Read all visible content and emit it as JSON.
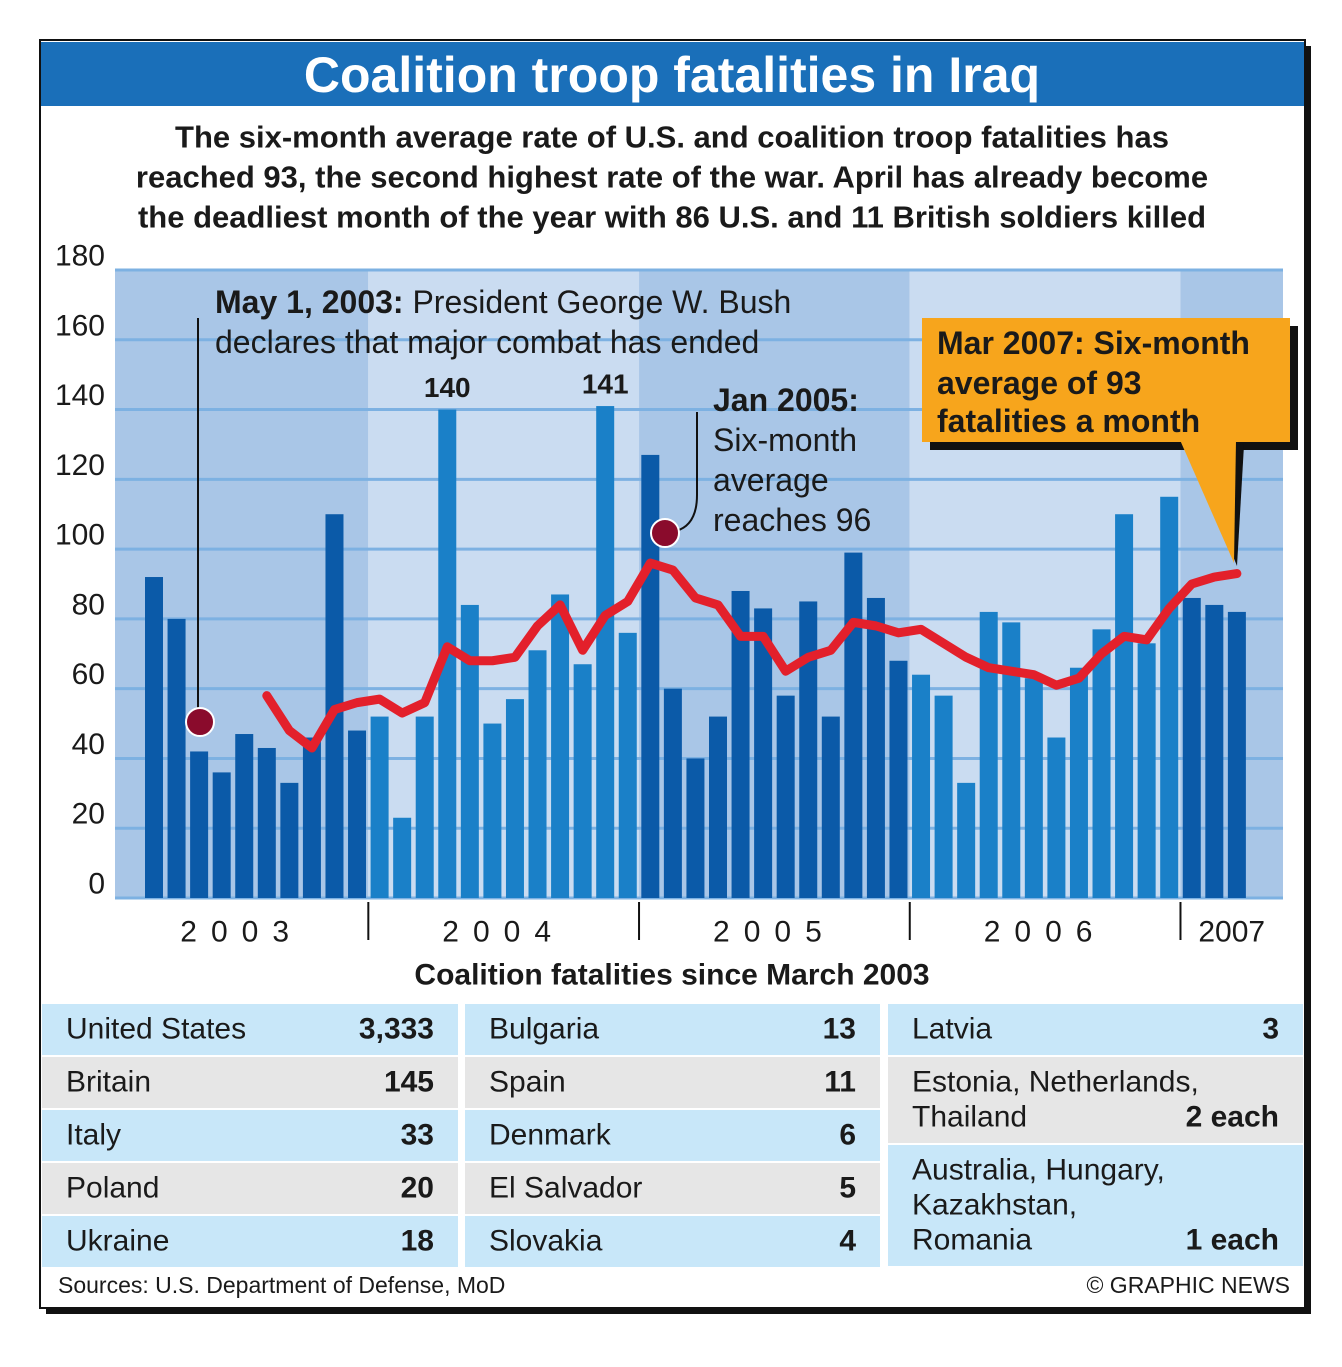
{
  "chart_data": {
    "type": "bar",
    "title": "Coalition troop fatalities in Iraq",
    "subtitle": [
      "The six-month average rate of U.S. and coalition troop fatalities has",
      "reached 93, the second highest rate of the war. April has already become",
      "the deadliest month of the year with 86 U.S. and 11 British soldiers killed"
    ],
    "ylim": [
      0,
      180
    ],
    "yticks": [
      0,
      20,
      40,
      60,
      80,
      100,
      120,
      140,
      160,
      180
    ],
    "grid": true,
    "line_color": "#e3202b",
    "years": [
      {
        "label": "2003",
        "color": "#0b5aa8",
        "band_color": "#a9c6e7",
        "values": [
          92,
          80,
          42,
          36,
          47,
          43,
          33,
          46,
          110,
          48
        ],
        "average": [
          null,
          null,
          null,
          null,
          null,
          58,
          48,
          43,
          54,
          56
        ]
      },
      {
        "label": "2004",
        "color": "#1a80c8",
        "band_color": "#cadcf1",
        "values": [
          52,
          23,
          52,
          140,
          84,
          50,
          57,
          71,
          87,
          67,
          141,
          76
        ],
        "average": [
          57,
          53,
          56,
          72,
          68,
          68,
          69,
          78,
          84,
          71,
          81,
          85
        ]
      },
      {
        "label": "2005",
        "color": "#0b5aa8",
        "band_color": "#a9c6e7",
        "values": [
          127,
          60,
          40,
          52,
          88,
          83,
          58,
          85,
          52,
          99,
          86,
          68
        ],
        "average": [
          96,
          94,
          86,
          84,
          75,
          75,
          65,
          69,
          71,
          79,
          78,
          76
        ]
      },
      {
        "label": "2006",
        "color": "#1a80c8",
        "band_color": "#cadcf1",
        "values": [
          64,
          58,
          33,
          82,
          79,
          63,
          46,
          66,
          77,
          110,
          73,
          115
        ],
        "average": [
          77,
          73,
          69,
          66,
          65,
          64,
          61,
          63,
          70,
          75,
          74,
          83
        ]
      },
      {
        "label": "2007",
        "color": "#0b5aa8",
        "band_color": "#a9c6e7",
        "values": [
          86,
          84,
          82
        ],
        "average": [
          90,
          92,
          93
        ]
      }
    ],
    "annotations": [
      {
        "bold": "May 1, 2003:",
        "lines": [
          "President George W. Bush",
          "declares that major combat has ended"
        ]
      },
      {
        "bold": "Jan 2005:",
        "lines": [
          "Six-month",
          "average",
          "reaches 96"
        ]
      },
      {
        "bold": "Mar 2007: Six-month",
        "lines": [
          "average of 93",
          "fatalities a month"
        ]
      }
    ]
  },
  "table": {
    "title": "Coalition fatalities since March 2003",
    "columns": [
      [
        {
          "name": [
            "United States"
          ],
          "value": "3,333"
        },
        {
          "name": [
            "Britain"
          ],
          "value": "145"
        },
        {
          "name": [
            "Italy"
          ],
          "value": "33"
        },
        {
          "name": [
            "Poland"
          ],
          "value": "20"
        },
        {
          "name": [
            "Ukraine"
          ],
          "value": "18"
        }
      ],
      [
        {
          "name": [
            "Bulgaria"
          ],
          "value": "13"
        },
        {
          "name": [
            "Spain"
          ],
          "value": "11"
        },
        {
          "name": [
            "Denmark"
          ],
          "value": "6"
        },
        {
          "name": [
            "El Salvador"
          ],
          "value": "5"
        },
        {
          "name": [
            "Slovakia"
          ],
          "value": "4"
        }
      ],
      [
        {
          "name": [
            "Latvia"
          ],
          "value": "3"
        },
        {
          "name": [
            "Estonia, Netherlands,",
            "Thailand"
          ],
          "value": "2 each"
        },
        {
          "name": [
            "Australia, Hungary,",
            "Kazakhstan,",
            "Romania"
          ],
          "value": "1 each"
        }
      ]
    ]
  },
  "footer": {
    "source": "Sources: U.S. Department of Defense, MoD",
    "credit": "© GRAPHIC NEWS"
  }
}
